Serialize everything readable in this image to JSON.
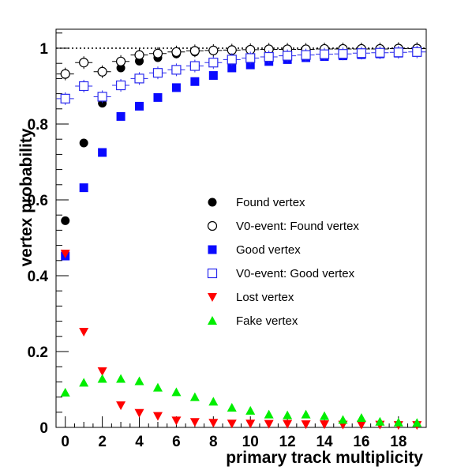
{
  "chart_data": {
    "type": "scatter",
    "xlabel": "primary track multiplicity",
    "ylabel": "vertex probability",
    "xlim": [
      -0.5,
      19.5
    ],
    "ylim": [
      0,
      1.05
    ],
    "x_ticks": [
      0,
      2,
      4,
      6,
      8,
      10,
      12,
      14,
      16,
      18
    ],
    "x_tick_labels": [
      "0",
      "2",
      "4",
      "6",
      "8",
      "10",
      "12",
      "14",
      "16",
      "18"
    ],
    "y_ticks": [
      0,
      0.2,
      0.4,
      0.6,
      0.8,
      1
    ],
    "y_tick_labels": [
      "0",
      "0.2",
      "0.4",
      "0.6",
      "0.8",
      "1"
    ],
    "reference_line": {
      "y": 1,
      "style": "dotted"
    },
    "legend_position": "center-right",
    "grid": false,
    "x": [
      0,
      1,
      2,
      3,
      4,
      5,
      6,
      7,
      8,
      9,
      10,
      11,
      12,
      13,
      14,
      15,
      16,
      17,
      18,
      19
    ],
    "series": [
      {
        "name": "Found vertex",
        "marker": "circle-filled",
        "color": "#000000",
        "values": [
          0.545,
          0.75,
          0.855,
          0.948,
          0.966,
          0.975,
          0.985,
          0.99,
          0.994,
          0.996,
          0.997,
          0.998,
          0.998,
          0.998,
          0.998,
          0.999,
          0.999,
          0.999,
          0.999,
          0.999
        ]
      },
      {
        "name": "V0-event: Found vertex",
        "marker": "circle-open",
        "color": "#000000",
        "values": [
          0.932,
          0.962,
          0.938,
          0.965,
          0.982,
          0.986,
          0.99,
          0.993,
          0.994,
          0.995,
          0.996,
          0.997,
          0.997,
          0.997,
          0.998,
          0.998,
          0.998,
          0.998,
          0.999,
          0.999
        ]
      },
      {
        "name": "Good vertex",
        "marker": "square-filled",
        "color": "#0a0aff",
        "values": [
          0.452,
          0.632,
          0.725,
          0.82,
          0.847,
          0.87,
          0.896,
          0.912,
          0.928,
          0.948,
          0.956,
          0.965,
          0.97,
          0.975,
          0.978,
          0.98,
          0.983,
          0.985,
          0.987,
          0.989
        ]
      },
      {
        "name": "V0-event: Good vertex",
        "marker": "square-open",
        "color": "#2a2aee",
        "values": [
          0.867,
          0.9,
          0.872,
          0.902,
          0.92,
          0.935,
          0.943,
          0.953,
          0.962,
          0.97,
          0.974,
          0.977,
          0.98,
          0.982,
          0.984,
          0.985,
          0.987,
          0.988,
          0.989,
          0.99
        ]
      },
      {
        "name": "Lost vertex",
        "marker": "triangle-down",
        "color": "#ff0000",
        "values": [
          0.458,
          0.252,
          0.148,
          0.058,
          0.038,
          0.03,
          0.018,
          0.014,
          0.012,
          0.01,
          0.01,
          0.009,
          0.009,
          0.008,
          0.008,
          0.007,
          0.007,
          0.007,
          0.006,
          0.006
        ]
      },
      {
        "name": "Fake vertex",
        "marker": "triangle-up",
        "color": "#00ee00",
        "values": [
          0.092,
          0.118,
          0.128,
          0.128,
          0.122,
          0.105,
          0.093,
          0.08,
          0.068,
          0.052,
          0.044,
          0.034,
          0.032,
          0.034,
          0.03,
          0.02,
          0.025,
          0.015,
          0.013,
          0.012
        ]
      }
    ]
  }
}
